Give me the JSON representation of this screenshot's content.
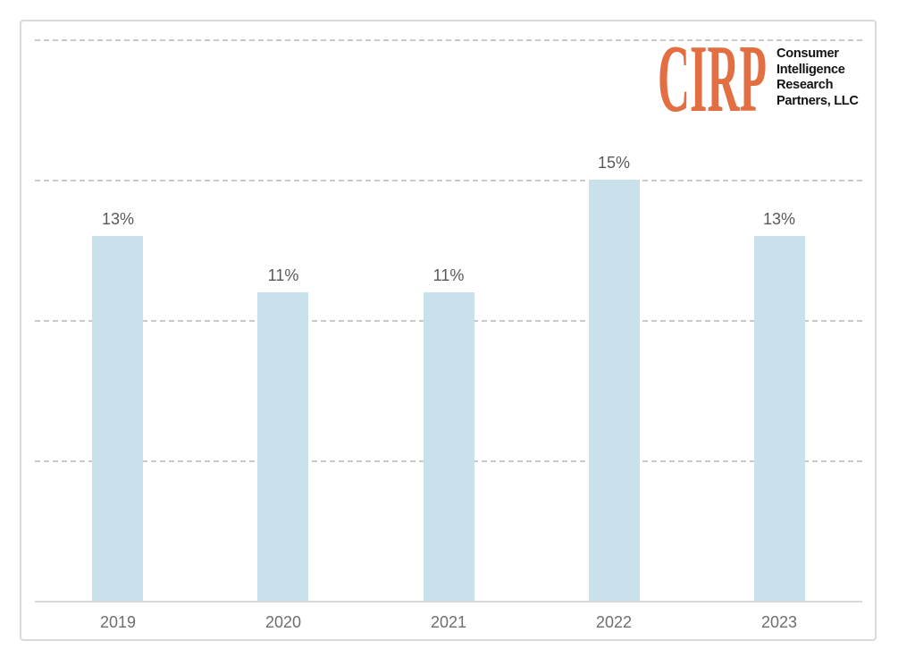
{
  "logo": {
    "acronym": "CIRP",
    "acronym_color": "#e26e42",
    "lines": [
      "Consumer",
      "Intelligence",
      "Research",
      "Partners, LLC"
    ],
    "text_color": "#141414"
  },
  "chart_data": {
    "type": "bar",
    "categories": [
      "2019",
      "2020",
      "2021",
      "2022",
      "2023"
    ],
    "values": [
      13,
      11,
      11,
      15,
      13
    ],
    "value_labels": [
      "13%",
      "11%",
      "11%",
      "15%",
      "13%"
    ],
    "title": "",
    "xlabel": "",
    "ylabel": "",
    "ylim": [
      0,
      20
    ],
    "gridline_values": [
      5,
      10,
      15,
      20
    ],
    "grid_style": "horizontal dashed",
    "legend": "none",
    "y_axis_tick_labels": "none",
    "bar_color": "#c8e1ea",
    "value_label_color": "#595959",
    "tick_label_color": "#6e6e6e",
    "gridline_color": "#c9c9c9",
    "axis_line_color": "#d8d8d8"
  }
}
